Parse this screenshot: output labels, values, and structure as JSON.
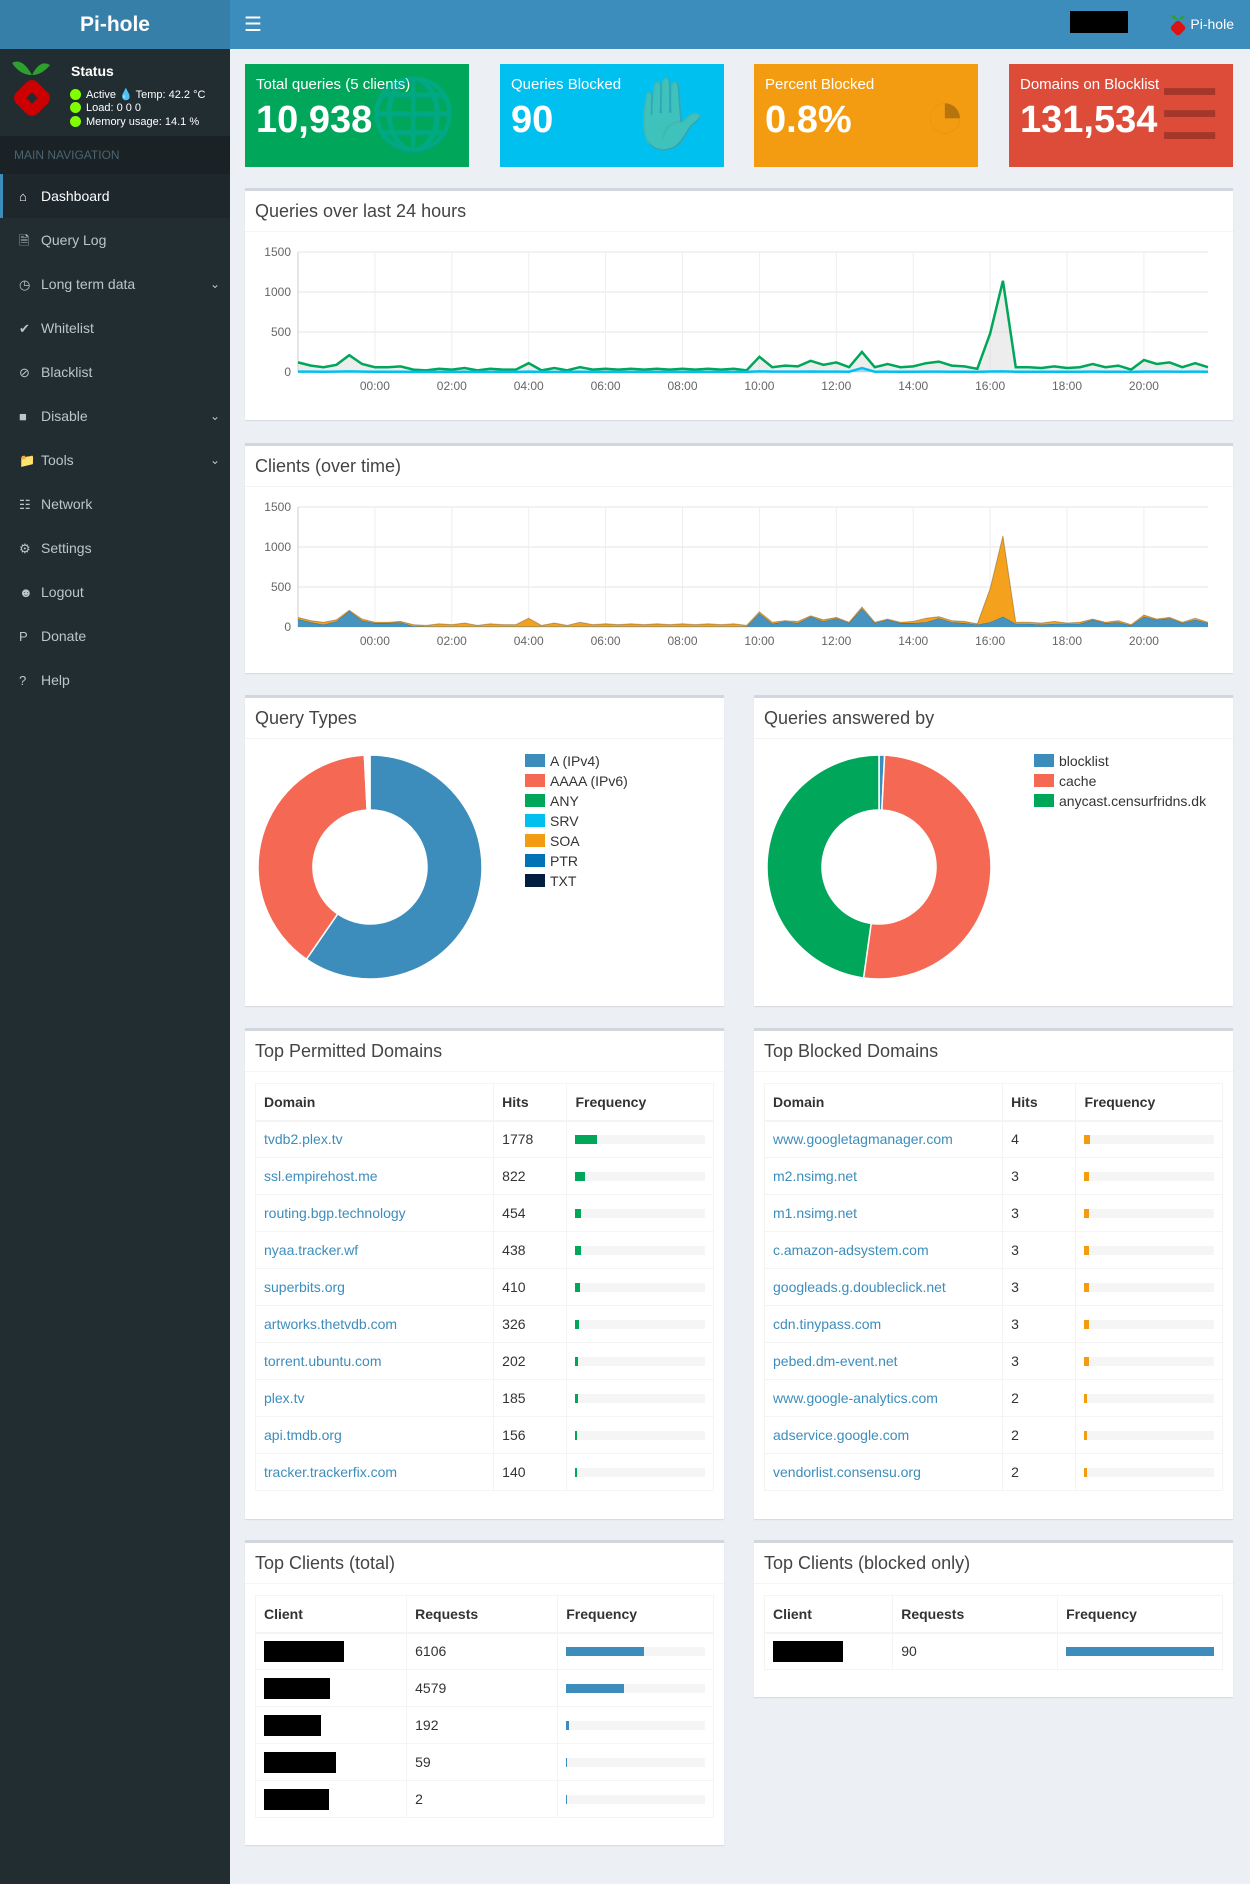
{
  "app": {
    "title": "Pi-hole",
    "header_name": "Pi-hole"
  },
  "status": {
    "title": "Status",
    "active": "Active",
    "temp": "Temp: 42.2 °C",
    "load": "Load:  0  0  0",
    "memory": "Memory usage:  14.1 %"
  },
  "sidebar": {
    "section": "MAIN NAVIGATION",
    "items": [
      {
        "label": "Dashboard",
        "icon": "home-icon",
        "active": true
      },
      {
        "label": "Query Log",
        "icon": "file-icon"
      },
      {
        "label": "Long term data",
        "icon": "clock-icon",
        "chevron": true
      },
      {
        "label": "Whitelist",
        "icon": "check-circle-icon"
      },
      {
        "label": "Blacklist",
        "icon": "ban-icon"
      },
      {
        "label": "Disable",
        "icon": "stop-icon",
        "chevron": true
      },
      {
        "label": "Tools",
        "icon": "folder-icon",
        "chevron": true
      },
      {
        "label": "Network",
        "icon": "network-icon"
      },
      {
        "label": "Settings",
        "icon": "gears-icon"
      },
      {
        "label": "Logout",
        "icon": "user-times-icon"
      },
      {
        "label": "Donate",
        "icon": "paypal-icon"
      },
      {
        "label": "Help",
        "icon": "question-circle-icon"
      }
    ]
  },
  "stats": [
    {
      "label": "Total queries (5 clients)",
      "value": "10,938",
      "color": "#00a65a",
      "icon": "globe-icon"
    },
    {
      "label": "Queries Blocked",
      "value": "90",
      "color": "#00c0ef",
      "icon": "hand-icon"
    },
    {
      "label": "Percent Blocked",
      "value": "0.8%",
      "color": "#f39c12",
      "icon": "pie-chart-icon"
    },
    {
      "label": "Domains on Blocklist",
      "value": "131,534",
      "color": "#dd4b39",
      "icon": "list-icon"
    }
  ],
  "chart_data": [
    {
      "type": "area",
      "title": "Queries over last 24 hours",
      "ylim": [
        0,
        1500
      ],
      "yticks": [
        0,
        500,
        1000,
        1500
      ],
      "grid": true,
      "xticks": [
        "00:00",
        "02:00",
        "04:00",
        "06:00",
        "08:00",
        "10:00",
        "12:00",
        "14:00",
        "16:00",
        "18:00",
        "20:00"
      ],
      "x_start": "22:00",
      "x_interval_minutes": 20,
      "series": [
        {
          "color": "#00a65a",
          "values": [
            120,
            80,
            60,
            90,
            210,
            100,
            60,
            60,
            70,
            30,
            20,
            40,
            30,
            50,
            20,
            40,
            30,
            30,
            110,
            20,
            50,
            20,
            60,
            30,
            40,
            30,
            40,
            30,
            40,
            30,
            40,
            30,
            40,
            30,
            40,
            20,
            190,
            60,
            80,
            70,
            140,
            90,
            120,
            60,
            250,
            60,
            100,
            60,
            70,
            110,
            130,
            80,
            70,
            40,
            480,
            1140,
            60,
            60,
            50,
            70,
            50,
            60,
            100,
            60,
            80,
            30,
            150,
            100,
            120,
            60,
            110,
            60
          ]
        },
        {
          "color": "#00c0ef",
          "values": [
            5,
            5,
            3,
            4,
            8,
            5,
            3,
            3,
            3,
            2,
            2,
            2,
            2,
            3,
            2,
            2,
            2,
            2,
            4,
            2,
            2,
            2,
            3,
            2,
            2,
            2,
            2,
            2,
            2,
            2,
            2,
            2,
            2,
            2,
            2,
            2,
            8,
            4,
            4,
            4,
            6,
            4,
            5,
            3,
            50,
            3,
            4,
            3,
            3,
            4,
            5,
            3,
            3,
            2,
            6,
            8,
            3,
            3,
            3,
            3,
            3,
            3,
            4,
            3,
            3,
            2,
            5,
            4,
            5,
            3,
            4,
            3
          ]
        }
      ]
    },
    {
      "type": "area",
      "stacked": true,
      "title": "Clients (over time)",
      "ylim": [
        0,
        1500
      ],
      "yticks": [
        0,
        500,
        1000,
        1500
      ],
      "grid": true,
      "xticks": [
        "00:00",
        "02:00",
        "04:00",
        "06:00",
        "08:00",
        "10:00",
        "12:00",
        "14:00",
        "16:00",
        "18:00",
        "20:00"
      ],
      "x_start": "22:00",
      "x_interval_minutes": 20,
      "series": [
        {
          "color": "#3c8dbc",
          "values": [
            100,
            60,
            30,
            70,
            200,
            80,
            50,
            50,
            60,
            10,
            5,
            5,
            5,
            5,
            5,
            5,
            5,
            5,
            5,
            5,
            5,
            5,
            5,
            5,
            5,
            5,
            5,
            5,
            5,
            5,
            5,
            5,
            5,
            5,
            5,
            5,
            170,
            40,
            70,
            50,
            130,
            70,
            110,
            50,
            230,
            50,
            90,
            50,
            50,
            60,
            110,
            60,
            50,
            30,
            60,
            130,
            40,
            40,
            30,
            40,
            40,
            40,
            90,
            50,
            60,
            20,
            130,
            90,
            110,
            50,
            90,
            50
          ]
        },
        {
          "color": "#f39c12",
          "values": [
            20,
            20,
            30,
            20,
            10,
            20,
            10,
            10,
            10,
            20,
            15,
            35,
            25,
            45,
            15,
            35,
            25,
            25,
            105,
            15,
            45,
            15,
            55,
            25,
            35,
            25,
            35,
            25,
            35,
            25,
            35,
            25,
            35,
            25,
            35,
            15,
            20,
            20,
            10,
            20,
            10,
            20,
            10,
            10,
            20,
            10,
            10,
            10,
            20,
            50,
            20,
            20,
            20,
            10,
            420,
            1010,
            20,
            20,
            20,
            30,
            10,
            20,
            10,
            10,
            20,
            10,
            20,
            10,
            10,
            10,
            20,
            10
          ]
        }
      ]
    },
    {
      "type": "pie",
      "title": "Query Types",
      "labels": [
        "A (IPv4)",
        "AAAA (IPv6)",
        "ANY",
        "SRV",
        "SOA",
        "PTR",
        "TXT"
      ],
      "values": [
        59.6,
        39.6,
        0.2,
        0.1,
        0.2,
        0.2,
        0.1
      ],
      "colors": [
        "#3c8dbc",
        "#f56954",
        "#00a65a",
        "#00c0ef",
        "#f39c12",
        "#0073b7",
        "#001f3f"
      ],
      "legend": "right"
    },
    {
      "type": "pie",
      "title": "Queries answered by",
      "labels": [
        "blocklist",
        "cache",
        "anycast.censurfridns.dk"
      ],
      "values": [
        0.8,
        51.4,
        47.8
      ],
      "colors": [
        "#3c8dbc",
        "#f56954",
        "#00a65a"
      ],
      "legend": "right"
    }
  ],
  "permitted": {
    "title": "Top Permitted Domains",
    "headers": [
      "Domain",
      "Hits",
      "Frequency"
    ],
    "rows": [
      {
        "domain": "tvdb2.plex.tv",
        "hits": "1778",
        "pct": 16.3
      },
      {
        "domain": "ssl.empirehost.me",
        "hits": "822",
        "pct": 7.5
      },
      {
        "domain": "routing.bgp.technology",
        "hits": "454",
        "pct": 4.2
      },
      {
        "domain": "nyaa.tracker.wf",
        "hits": "438",
        "pct": 4.0
      },
      {
        "domain": "superbits.org",
        "hits": "410",
        "pct": 3.7
      },
      {
        "domain": "artworks.thetvdb.com",
        "hits": "326",
        "pct": 3.0
      },
      {
        "domain": "torrent.ubuntu.com",
        "hits": "202",
        "pct": 1.8
      },
      {
        "domain": "plex.tv",
        "hits": "185",
        "pct": 1.7
      },
      {
        "domain": "api.tmdb.org",
        "hits": "156",
        "pct": 1.4
      },
      {
        "domain": "tracker.trackerfix.com",
        "hits": "140",
        "pct": 1.3
      }
    ],
    "bar_color": "#00a65a"
  },
  "blocked": {
    "title": "Top Blocked Domains",
    "headers": [
      "Domain",
      "Hits",
      "Frequency"
    ],
    "rows": [
      {
        "domain": "www.googletagmanager.com",
        "hits": "4",
        "pct": 4.4
      },
      {
        "domain": "m2.nsimg.net",
        "hits": "3",
        "pct": 3.3
      },
      {
        "domain": "m1.nsimg.net",
        "hits": "3",
        "pct": 3.3
      },
      {
        "domain": "c.amazon-adsystem.com",
        "hits": "3",
        "pct": 3.3
      },
      {
        "domain": "googleads.g.doubleclick.net",
        "hits": "3",
        "pct": 3.3
      },
      {
        "domain": "cdn.tinypass.com",
        "hits": "3",
        "pct": 3.3
      },
      {
        "domain": "pebed.dm-event.net",
        "hits": "3",
        "pct": 3.3
      },
      {
        "domain": "www.google-analytics.com",
        "hits": "2",
        "pct": 2.2
      },
      {
        "domain": "adservice.google.com",
        "hits": "2",
        "pct": 2.2
      },
      {
        "domain": "vendorlist.consensu.org",
        "hits": "2",
        "pct": 2.2
      }
    ],
    "bar_color": "#f39c12"
  },
  "clients": {
    "title": "Top Clients (total)",
    "headers": [
      "Client",
      "Requests",
      "Frequency"
    ],
    "rows": [
      {
        "requests": "6106",
        "pct": 55.8
      },
      {
        "requests": "4579",
        "pct": 41.9
      },
      {
        "requests": "192",
        "pct": 1.8
      },
      {
        "requests": "59",
        "pct": 0.5
      },
      {
        "requests": "2",
        "pct": 0.02
      }
    ],
    "bar_color": "#3c8dbc"
  },
  "clients_blocked": {
    "title": "Top Clients (blocked only)",
    "headers": [
      "Client",
      "Requests",
      "Frequency"
    ],
    "rows": [
      {
        "requests": "90",
        "pct": 100
      }
    ],
    "bar_color": "#3c8dbc"
  }
}
